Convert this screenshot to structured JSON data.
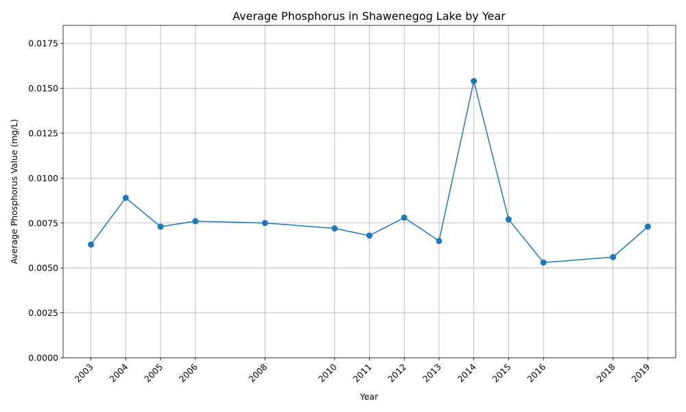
{
  "chart_data": {
    "type": "line",
    "title": "Average Phosphorus in Shawenegog Lake by Year",
    "xlabel": "Year",
    "ylabel": "Average Phosphorus Value (mg/L)",
    "x": [
      2003,
      2004,
      2005,
      2006,
      2008,
      2010,
      2011,
      2012,
      2013,
      2014,
      2015,
      2016,
      2018,
      2019
    ],
    "xticklabels": [
      "2003",
      "2004",
      "2005",
      "2006",
      "2008",
      "2010",
      "2011",
      "2012",
      "2013",
      "2014",
      "2015",
      "2016",
      "2018",
      "2019"
    ],
    "series": [
      {
        "values": [
          0.0063,
          0.0089,
          0.0073,
          0.0076,
          0.0075,
          0.0072,
          0.0068,
          0.0078,
          0.0065,
          0.0154,
          0.0077,
          0.0053,
          0.0056,
          0.0073
        ]
      }
    ],
    "yticks": [
      0,
      0.0025,
      0.005,
      0.0075,
      0.01,
      0.0125,
      0.015,
      0.0175
    ],
    "yticklabels": [
      "0.0000",
      "0.0025",
      "0.0050",
      "0.0075",
      "0.0100",
      "0.0125",
      "0.0150",
      "0.0175"
    ],
    "xlim": [
      2002.2,
      2019.8
    ],
    "ylim": [
      0,
      0.0185
    ],
    "grid": true,
    "color": "#1f77b4"
  }
}
